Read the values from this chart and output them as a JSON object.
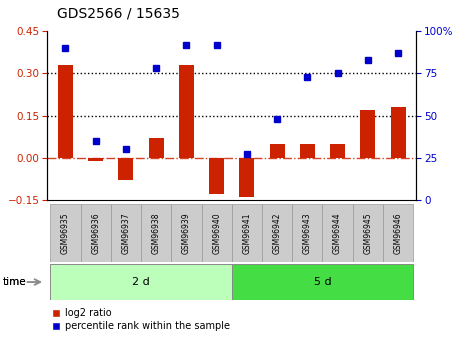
{
  "title": "GDS2566 / 15635",
  "samples": [
    "GSM96935",
    "GSM96936",
    "GSM96937",
    "GSM96938",
    "GSM96939",
    "GSM96940",
    "GSM96941",
    "GSM96942",
    "GSM96943",
    "GSM96944",
    "GSM96945",
    "GSM96946"
  ],
  "log2_ratio": [
    0.33,
    -0.01,
    -0.08,
    0.07,
    0.33,
    -0.13,
    -0.14,
    0.05,
    0.05,
    0.05,
    0.17,
    0.18
  ],
  "percentile_rank": [
    90,
    35,
    30,
    78,
    92,
    92,
    27,
    48,
    73,
    75,
    83,
    87
  ],
  "bar_color": "#cc2200",
  "dot_color": "#0000cc",
  "ylim_left": [
    -0.15,
    0.45
  ],
  "ylim_right": [
    0,
    100
  ],
  "yticks_left": [
    -0.15,
    0.0,
    0.15,
    0.3,
    0.45
  ],
  "yticks_right": [
    0,
    25,
    50,
    75,
    100
  ],
  "hlines_dotted": [
    0.15,
    0.3
  ],
  "hline_dashdot_val": 0.0,
  "group1_label": "2 d",
  "group1_count": 6,
  "group2_label": "5 d",
  "group2_count": 6,
  "group1_color": "#bbffbb",
  "group2_color": "#44dd44",
  "legend_red": "log2 ratio",
  "legend_blue": "percentile rank within the sample",
  "time_label": "time",
  "bar_width": 0.5,
  "sample_box_color": "#cccccc",
  "sample_box_edge": "#999999"
}
